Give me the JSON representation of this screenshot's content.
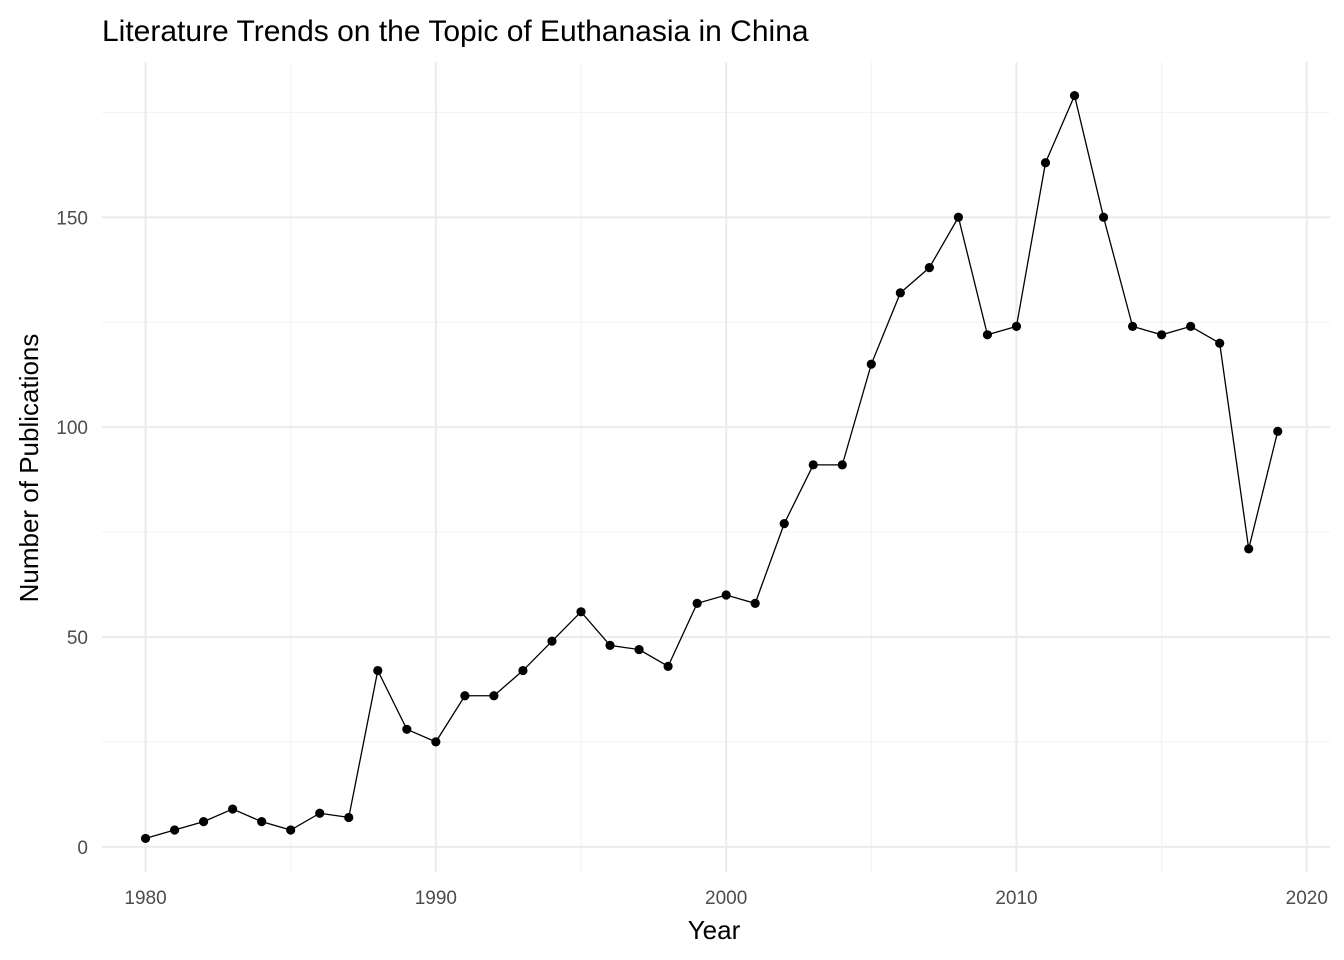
{
  "chart_data": {
    "type": "line",
    "title": "Literature Trends on the Topic of Euthanasia in China",
    "xlabel": "Year",
    "ylabel": "Number of Publications",
    "xlim": [
      1978.5,
      2020.8
    ],
    "ylim": [
      -6,
      187
    ],
    "x_ticks": [
      1980,
      1990,
      2000,
      2010,
      2020
    ],
    "x_minor_ticks": [
      1985,
      1995,
      2005,
      2015
    ],
    "y_ticks": [
      0,
      50,
      100,
      150
    ],
    "y_minor_ticks": [
      25,
      75,
      125,
      175
    ],
    "grid": true,
    "legend": "none",
    "series": [
      {
        "name": "Publications",
        "color": "#000000",
        "x": [
          1980,
          1981,
          1982,
          1983,
          1984,
          1985,
          1986,
          1987,
          1988,
          1989,
          1990,
          1991,
          1992,
          1993,
          1994,
          1995,
          1996,
          1997,
          1998,
          1999,
          2000,
          2001,
          2002,
          2003,
          2004,
          2005,
          2006,
          2007,
          2008,
          2009,
          2010,
          2011,
          2012,
          2013,
          2014,
          2015,
          2016,
          2017,
          2018,
          2019
        ],
        "values": [
          2,
          4,
          6,
          9,
          6,
          4,
          8,
          7,
          42,
          28,
          25,
          36,
          36,
          42,
          49,
          56,
          48,
          47,
          43,
          58,
          60,
          58,
          77,
          91,
          91,
          115,
          132,
          138,
          150,
          122,
          124,
          163,
          179,
          150,
          124,
          122,
          124,
          120,
          71,
          99
        ]
      }
    ]
  }
}
